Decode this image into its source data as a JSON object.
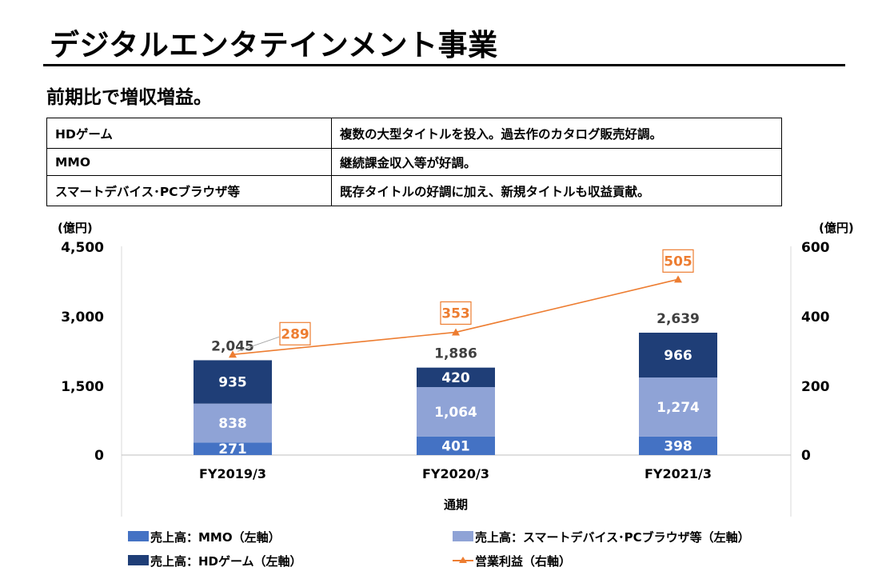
{
  "header": {
    "title": "デジタルエンタテインメント事業",
    "subtitle": "前期比で増収増益。"
  },
  "summary_table": [
    {
      "segment": "HDゲーム",
      "comment": "複数の大型タイトルを投入。過去作のカタログ販売好調。"
    },
    {
      "segment": "MMO",
      "comment": "継続課金収入等が好調。"
    },
    {
      "segment": "スマートデバイス･PCブラウザ等",
      "comment": "既存タイトルの好調に加え、新規タイトルも収益貢献。"
    }
  ],
  "chart_data": {
    "type": "bar",
    "stacked": true,
    "categories": [
      "FY2019/3",
      "FY2020/3",
      "FY2021/3"
    ],
    "xlabel": "通期",
    "y_left": {
      "unit": "(億円)",
      "ylim": [
        0,
        4500
      ],
      "ticks": [
        0,
        1500,
        3000,
        4500
      ],
      "tick_labels": [
        "0",
        "1,500",
        "3,000",
        "4,500"
      ]
    },
    "y_right": {
      "unit": "(億円)",
      "ylim": [
        0,
        600
      ],
      "ticks": [
        0,
        200,
        400,
        600
      ],
      "tick_labels": [
        "0",
        "200",
        "400",
        "600"
      ]
    },
    "series": [
      {
        "name": "売上高：MMO（左軸）",
        "axis": "left",
        "type": "bar",
        "color": "#4472C4",
        "values": [
          271,
          401,
          398
        ],
        "labels": [
          "271",
          "401",
          "398"
        ]
      },
      {
        "name": "売上高：スマートデバイス･PCブラウザ等（左軸）",
        "axis": "left",
        "type": "bar",
        "color": "#8FA3D6",
        "values": [
          838,
          1064,
          1274
        ],
        "labels": [
          "838",
          "1,064",
          "1,274"
        ]
      },
      {
        "name": "売上高：HDゲーム（左軸）",
        "axis": "left",
        "type": "bar",
        "color": "#1F3E77",
        "values": [
          935,
          420,
          966
        ],
        "labels": [
          "935",
          "420",
          "966"
        ]
      },
      {
        "name": "営業利益（右軸）",
        "axis": "right",
        "type": "line",
        "color": "#ED7D31",
        "values": [
          289,
          353,
          505
        ],
        "labels": [
          "289",
          "353",
          "505"
        ]
      }
    ],
    "totals": [
      2045,
      1886,
      2639
    ],
    "total_labels": [
      "2,045",
      "1,886",
      "2,639"
    ],
    "legend_position": "bottom",
    "grid": false
  }
}
